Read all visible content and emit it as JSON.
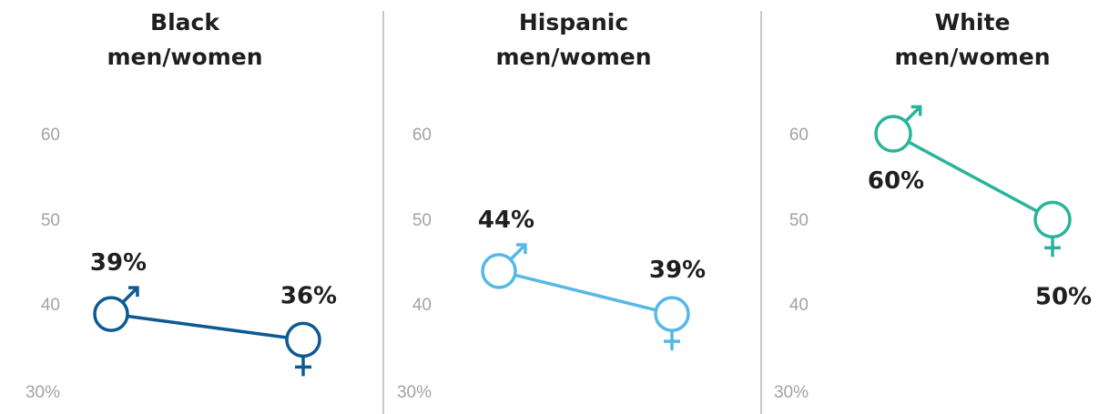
{
  "chart_data": [
    {
      "type": "line",
      "title_line1": "Black",
      "title_line2": "men/women",
      "categories": [
        "men",
        "women"
      ],
      "values": [
        39,
        36
      ],
      "value_labels": [
        "39%",
        "36%"
      ],
      "color": "#0d5a92",
      "yticks": [
        "60",
        "50",
        "40",
        "30%"
      ],
      "ylim": [
        30,
        60
      ]
    },
    {
      "type": "line",
      "title_line1": "Hispanic",
      "title_line2": "men/women",
      "categories": [
        "men",
        "women"
      ],
      "values": [
        44,
        39
      ],
      "value_labels": [
        "44%",
        "39%"
      ],
      "color": "#55b8e6",
      "yticks": [
        "60",
        "50",
        "40",
        "30%"
      ],
      "ylim": [
        30,
        60
      ]
    },
    {
      "type": "line",
      "title_line1": "White",
      "title_line2": "men/women",
      "categories": [
        "men",
        "women"
      ],
      "values": [
        60,
        50
      ],
      "value_labels": [
        "60%",
        "50%"
      ],
      "color": "#2bb39b",
      "yticks": [
        "60",
        "50",
        "40",
        "30%"
      ],
      "ylim": [
        30,
        60
      ]
    }
  ]
}
